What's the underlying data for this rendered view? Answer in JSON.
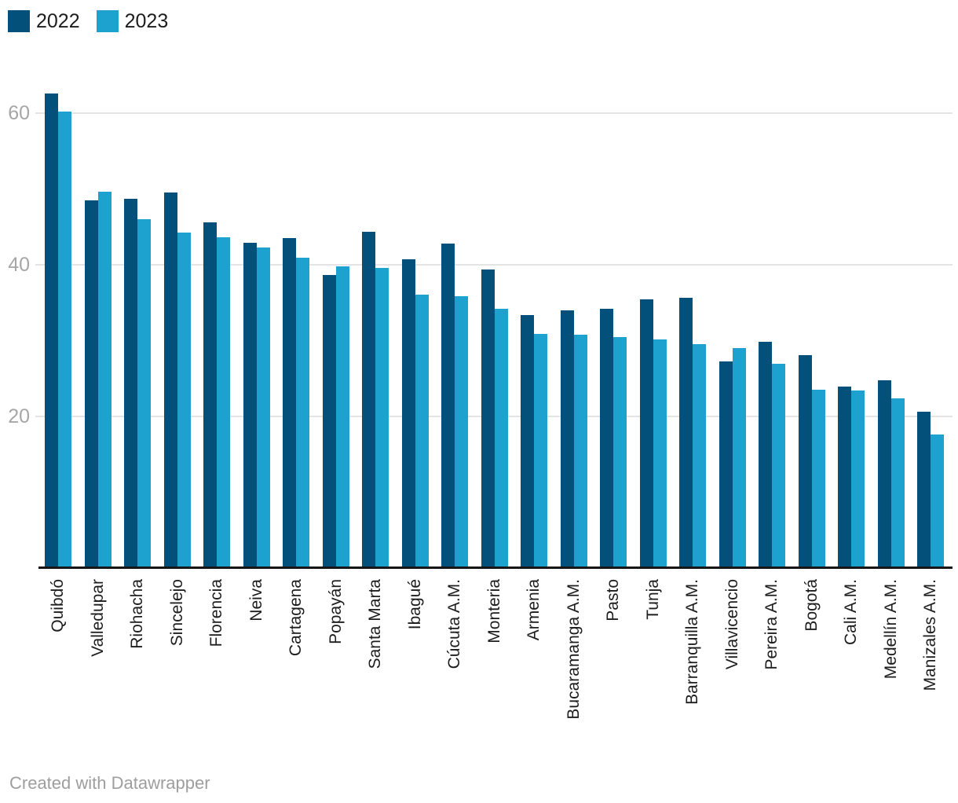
{
  "legend": {
    "items": [
      {
        "label": "2022",
        "color": "#03517B"
      },
      {
        "label": "2023",
        "color": "#1DA1CE"
      }
    ]
  },
  "footer": {
    "credit": "Created with Datawrapper"
  },
  "chart_data": {
    "type": "bar",
    "categories": [
      "Quibdó",
      "Valledupar",
      "Riohacha",
      "Sincelejo",
      "Florencia",
      "Neiva",
      "Cartagena",
      "Popayán",
      "Santa Marta",
      "Ibagué",
      "Cúcuta A.M.",
      "Monteria",
      "Armenia",
      "Bucaramanga A.M.",
      "Pasto",
      "Tunja",
      "Barranquilla A.M.",
      "Villavicencio",
      "Pereira A.M.",
      "Bogotá",
      "Cali A.M.",
      "Medellín A.M.",
      "Manizales A.M."
    ],
    "series": [
      {
        "name": "2022",
        "color": "#03517B",
        "values": [
          62.6,
          48.5,
          48.7,
          49.5,
          45.6,
          42.9,
          43.5,
          38.6,
          44.3,
          40.7,
          42.8,
          39.4,
          33.4,
          34.0,
          34.2,
          35.4,
          35.6,
          27.2,
          29.8,
          28.1,
          23.9,
          24.8,
          20.6
        ]
      },
      {
        "name": "2023",
        "color": "#1DA1CE",
        "values": [
          60.2,
          49.6,
          46.0,
          44.2,
          43.6,
          42.3,
          40.9,
          39.8,
          39.6,
          36.0,
          35.8,
          34.2,
          30.9,
          30.8,
          30.4,
          30.1,
          29.5,
          29.0,
          26.9,
          23.5,
          23.4,
          22.4,
          17.6
        ]
      }
    ],
    "y_ticks": [
      20,
      40,
      60
    ],
    "y_tick_labels": [
      "20",
      "40",
      "60"
    ],
    "ylim": [
      0,
      66
    ],
    "grid": "horizontal",
    "legend_position": "top-left",
    "colors": {
      "gridline": "#E4E4E4",
      "axis_line": "#161616",
      "y_tick_label": "#A6A6A6",
      "category_label": "#1D1D1D"
    }
  }
}
